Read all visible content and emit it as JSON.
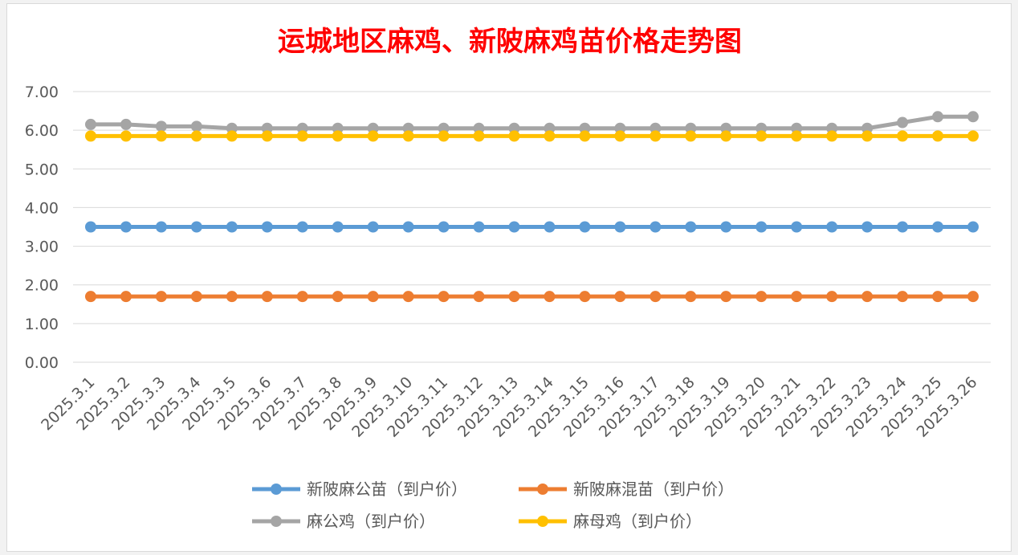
{
  "chart_data": {
    "type": "line",
    "title": "运城地区麻鸡、新陂麻鸡苗价格走势图",
    "categories": [
      "2025.3.1",
      "2025.3.2",
      "2025.3.3",
      "2025.3.4",
      "2025.3.5",
      "2025.3.6",
      "2025.3.7",
      "2025.3.8",
      "2025.3.9",
      "2025.3.10",
      "2025.3.11",
      "2025.3.12",
      "2025.3.13",
      "2025.3.14",
      "2025.3.15",
      "2025.3.16",
      "2025.3.17",
      "2025.3.18",
      "2025.3.19",
      "2025.3.20",
      "2025.3.21",
      "2025.3.22",
      "2025.3.23",
      "2025.3.24",
      "2025.3.25",
      "2025.3.26"
    ],
    "yticks": [
      "0.00",
      "1.00",
      "2.00",
      "3.00",
      "4.00",
      "5.00",
      "6.00",
      "7.00"
    ],
    "ylim": [
      0,
      7
    ],
    "grid": true,
    "legend_position": "bottom",
    "series": [
      {
        "name": "新陂麻公苗（到户价）",
        "color": "#5b9bd5",
        "values": [
          3.5,
          3.5,
          3.5,
          3.5,
          3.5,
          3.5,
          3.5,
          3.5,
          3.5,
          3.5,
          3.5,
          3.5,
          3.5,
          3.5,
          3.5,
          3.5,
          3.5,
          3.5,
          3.5,
          3.5,
          3.5,
          3.5,
          3.5,
          3.5,
          3.5,
          3.5
        ]
      },
      {
        "name": "新陂麻混苗（到户价）",
        "color": "#ed7d31",
        "values": [
          1.7,
          1.7,
          1.7,
          1.7,
          1.7,
          1.7,
          1.7,
          1.7,
          1.7,
          1.7,
          1.7,
          1.7,
          1.7,
          1.7,
          1.7,
          1.7,
          1.7,
          1.7,
          1.7,
          1.7,
          1.7,
          1.7,
          1.7,
          1.7,
          1.7,
          1.7
        ]
      },
      {
        "name": "麻公鸡（到户价）",
        "color": "#a5a5a5",
        "values": [
          6.15,
          6.15,
          6.1,
          6.1,
          6.05,
          6.05,
          6.05,
          6.05,
          6.05,
          6.05,
          6.05,
          6.05,
          6.05,
          6.05,
          6.05,
          6.05,
          6.05,
          6.05,
          6.05,
          6.05,
          6.05,
          6.05,
          6.05,
          6.2,
          6.35,
          6.35
        ]
      },
      {
        "name": "麻母鸡（到户价）",
        "color": "#ffc000",
        "values": [
          5.85,
          5.85,
          5.85,
          5.85,
          5.85,
          5.85,
          5.85,
          5.85,
          5.85,
          5.85,
          5.85,
          5.85,
          5.85,
          5.85,
          5.85,
          5.85,
          5.85,
          5.85,
          5.85,
          5.85,
          5.85,
          5.85,
          5.85,
          5.85,
          5.85,
          5.85
        ]
      }
    ]
  }
}
